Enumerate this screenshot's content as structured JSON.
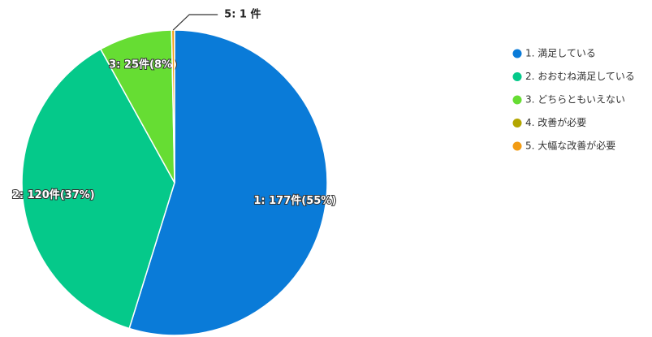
{
  "chart_data": {
    "type": "pie",
    "categories": [
      "1. 満足している",
      "2. おおむね満足している",
      "3. どちらともいえない",
      "4. 改善が必要",
      "5. 大幅な改善が必要"
    ],
    "values": [
      177,
      120,
      25,
      0,
      1
    ],
    "value_labels": [
      "1: 177件(55%)",
      "2: 120件(37%)",
      "3: 25件(8%)",
      null,
      "5: 1 件"
    ],
    "colors": [
      "#0a7bd8",
      "#05c98a",
      "#66dd33",
      "#b3a600",
      "#f29c14"
    ],
    "legend": "right"
  }
}
